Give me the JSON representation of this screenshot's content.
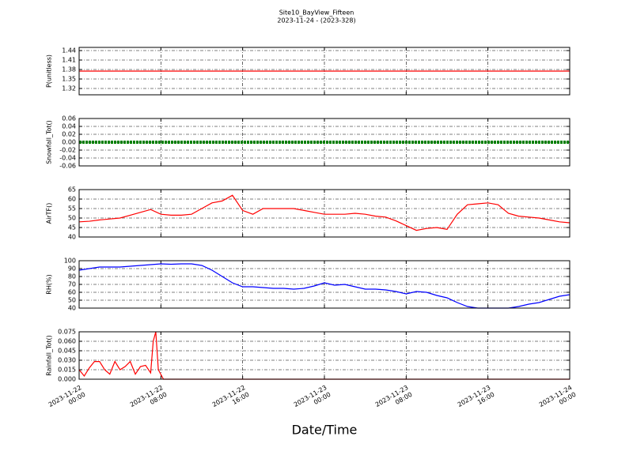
{
  "title": "Site10_BayView_Fifteen",
  "subtitle": "2023-11-24 - (2023-328)",
  "x_label": "Date/Time",
  "xlim": [
    "2023-11-22 00:00",
    "2023-11-24 00:00"
  ],
  "xticks": [
    "2023-11-22 00:00",
    "2023-11-22 08:00",
    "2023-11-22 16:00",
    "2023-11-23 00:00",
    "2023-11-23 08:00",
    "2023-11-23 16:00",
    "2023-11-24 00:00"
  ],
  "grid": true,
  "chart_data": [
    {
      "type": "line",
      "y_label": "P(unitless)",
      "ylim": [
        1.3,
        1.45
      ],
      "yticks": [
        1.32,
        1.35,
        1.38,
        1.41,
        1.44
      ],
      "series": [
        {
          "color": "#ff0000",
          "x": [
            "2023-11-22 00:00",
            "2023-11-24 00:00"
          ],
          "values": [
            1.375,
            1.375
          ]
        }
      ]
    },
    {
      "type": "line",
      "y_label": "Snowfall_Tot()",
      "ylim": [
        -0.06,
        0.06
      ],
      "yticks": [
        -0.06,
        -0.04,
        -0.02,
        {
          "value": 0,
          "label": "0.00"
        },
        0.02,
        0.04,
        0.06
      ],
      "series": [
        {
          "color": "#008000",
          "marker": true,
          "x": [
            "2023-11-22 00:00",
            "2023-11-24 00:00"
          ],
          "values": [
            0,
            0
          ]
        }
      ]
    },
    {
      "type": "line",
      "y_label": "AirTF()",
      "ylim": [
        40,
        65
      ],
      "yticks": [
        40,
        45,
        50,
        55,
        60,
        65
      ],
      "series": [
        {
          "color": "#ff0000",
          "x": [
            "2023-11-22 00:00",
            "2023-11-22 01:00",
            "2023-11-22 02:00",
            "2023-11-22 03:00",
            "2023-11-22 04:00",
            "2023-11-22 05:00",
            "2023-11-22 06:00",
            "2023-11-22 07:00",
            "2023-11-22 08:00",
            "2023-11-22 09:00",
            "2023-11-22 10:00",
            "2023-11-22 11:00",
            "2023-11-22 12:00",
            "2023-11-22 13:00",
            "2023-11-22 14:00",
            "2023-11-22 15:00",
            "2023-11-22 16:00",
            "2023-11-22 17:00",
            "2023-11-22 18:00",
            "2023-11-22 19:00",
            "2023-11-22 20:00",
            "2023-11-22 21:00",
            "2023-11-22 22:00",
            "2023-11-22 23:00",
            "2023-11-23 00:00",
            "2023-11-23 01:00",
            "2023-11-23 02:00",
            "2023-11-23 03:00",
            "2023-11-23 04:00",
            "2023-11-23 05:00",
            "2023-11-23 06:00",
            "2023-11-23 07:00",
            "2023-11-23 08:00",
            "2023-11-23 09:00",
            "2023-11-23 10:00",
            "2023-11-23 11:00",
            "2023-11-23 12:00",
            "2023-11-23 13:00",
            "2023-11-23 14:00",
            "2023-11-23 15:00",
            "2023-11-23 16:00",
            "2023-11-23 17:00",
            "2023-11-23 18:00",
            "2023-11-23 19:00",
            "2023-11-23 20:00",
            "2023-11-23 21:00",
            "2023-11-23 22:00",
            "2023-11-23 23:00",
            "2023-11-24 00:00"
          ],
          "values": [
            48,
            48.3,
            49,
            49.5,
            50,
            51.5,
            53,
            54.5,
            52,
            51.5,
            51.5,
            52,
            55,
            58,
            59,
            62,
            54,
            52,
            55,
            55,
            55,
            55,
            54,
            53,
            52,
            52,
            52,
            52.5,
            52,
            51,
            50.5,
            48.5,
            46,
            43.5,
            44.5,
            45,
            44,
            52,
            57,
            57.5,
            58,
            57,
            52.5,
            51,
            50.5,
            50,
            49,
            48,
            47.5
          ]
        }
      ]
    },
    {
      "type": "line",
      "y_label": "RH(%)",
      "ylim": [
        40,
        100
      ],
      "yticks": [
        40,
        50,
        60,
        70,
        80,
        90,
        100
      ],
      "series": [
        {
          "color": "#0000ff",
          "x": [
            "2023-11-22 00:00",
            "2023-11-22 01:00",
            "2023-11-22 02:00",
            "2023-11-22 03:00",
            "2023-11-22 04:00",
            "2023-11-22 05:00",
            "2023-11-22 06:00",
            "2023-11-22 07:00",
            "2023-11-22 08:00",
            "2023-11-22 09:00",
            "2023-11-22 10:00",
            "2023-11-22 11:00",
            "2023-11-22 12:00",
            "2023-11-22 13:00",
            "2023-11-22 14:00",
            "2023-11-22 15:00",
            "2023-11-22 16:00",
            "2023-11-22 17:00",
            "2023-11-22 18:00",
            "2023-11-22 19:00",
            "2023-11-22 20:00",
            "2023-11-22 21:00",
            "2023-11-22 22:00",
            "2023-11-22 23:00",
            "2023-11-23 00:00",
            "2023-11-23 01:00",
            "2023-11-23 02:00",
            "2023-11-23 03:00",
            "2023-11-23 04:00",
            "2023-11-23 05:00",
            "2023-11-23 06:00",
            "2023-11-23 07:00",
            "2023-11-23 08:00",
            "2023-11-23 09:00",
            "2023-11-23 10:00",
            "2023-11-23 11:00",
            "2023-11-23 12:00",
            "2023-11-23 13:00",
            "2023-11-23 14:00",
            "2023-11-23 15:00",
            "2023-11-23 16:00",
            "2023-11-23 17:00",
            "2023-11-23 18:00",
            "2023-11-23 19:00",
            "2023-11-23 20:00",
            "2023-11-23 21:00",
            "2023-11-23 22:00",
            "2023-11-23 23:00",
            "2023-11-24 00:00"
          ],
          "values": [
            88,
            90,
            92,
            92,
            92,
            93,
            94,
            95,
            96,
            95.5,
            96,
            96,
            94,
            88,
            80,
            72,
            67,
            67,
            66,
            65,
            65,
            64,
            65,
            68,
            72,
            69,
            70,
            67,
            64,
            64,
            63,
            61,
            58,
            61,
            60,
            56,
            53,
            47,
            42,
            40,
            40,
            40,
            40,
            42,
            45,
            47,
            51,
            55,
            57
          ]
        }
      ]
    },
    {
      "type": "line",
      "y_label": "Rainfall_Tot()",
      "ylim": [
        0,
        0.075
      ],
      "yticks": [
        {
          "value": 0,
          "label": "0.000"
        },
        0.015,
        {
          "value": 0.03,
          "label": "0.030"
        },
        0.045,
        {
          "value": 0.06,
          "label": "0.060"
        },
        0.075
      ],
      "series": [
        {
          "color": "#ff0000",
          "x": [
            "2023-11-22 00:00",
            "2023-11-22 00:30",
            "2023-11-22 01:00",
            "2023-11-22 01:30",
            "2023-11-22 02:00",
            "2023-11-22 02:30",
            "2023-11-22 03:00",
            "2023-11-22 03:30",
            "2023-11-22 04:00",
            "2023-11-22 04:30",
            "2023-11-22 05:00",
            "2023-11-22 05:30",
            "2023-11-22 06:00",
            "2023-11-22 06:30",
            "2023-11-22 07:00",
            "2023-11-22 07:15",
            "2023-11-22 07:30",
            "2023-11-22 07:45",
            "2023-11-22 08:15",
            "2023-11-24 00:00"
          ],
          "values": [
            0.015,
            0.005,
            0.018,
            0.028,
            0.028,
            0.015,
            0.008,
            0.028,
            0.015,
            0.02,
            0.028,
            0.008,
            0.02,
            0.022,
            0.01,
            0.06,
            0.075,
            0.015,
            0,
            0
          ]
        }
      ]
    }
  ]
}
